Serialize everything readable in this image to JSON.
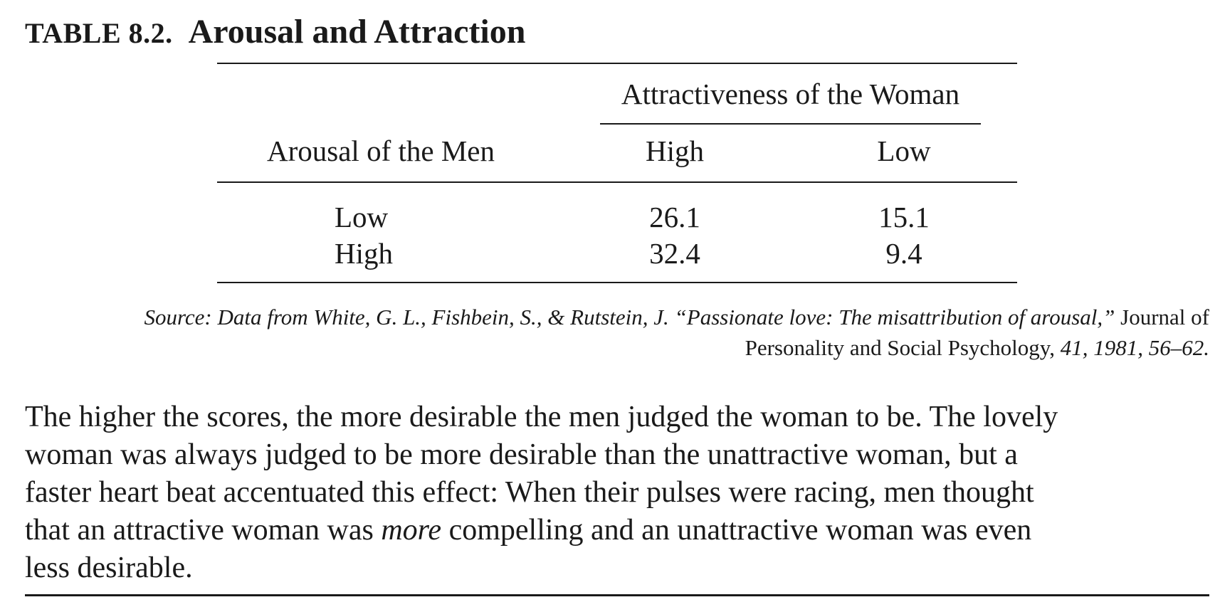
{
  "table": {
    "label": "TABLE 8.2.",
    "title": "Arousal and Attraction",
    "spanner_header": "Attractiveness of the Woman",
    "stub_header": "Arousal of the Men",
    "columns": [
      "High",
      "Low"
    ],
    "rows": [
      {
        "label": "Low",
        "values": [
          "26.1",
          "15.1"
        ]
      },
      {
        "label": "High",
        "values": [
          "32.4",
          "9.4"
        ]
      }
    ]
  },
  "source": {
    "line1_italic": "Source: Data from White, G. L., Fishbein, S., & Rutstein, J. “Passionate love: The misattribution of arousal,”",
    "line1_roman": "Journal of",
    "line2_roman": "Personality and Social Psychology,",
    "line2_italic": "41, 1981, 56–62."
  },
  "body": {
    "line1": "The higher the scores, the more desirable the men judged the woman to be. The lovely",
    "line2": "woman was always judged to be more desirable than the unattractive woman, but a",
    "line3": "faster heart beat accentuated this effect: When their pulses were racing, men thought",
    "line4_before": "that an attractive woman was",
    "line4_emphasis": "more",
    "line4_after": "compelling and an unattractive woman was even",
    "line5": "less desirable."
  }
}
